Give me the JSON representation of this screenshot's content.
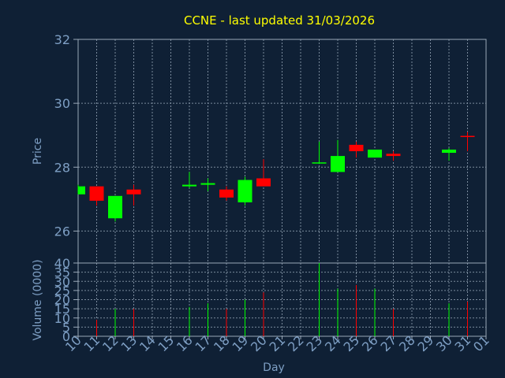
{
  "chart_data": {
    "type": "candlestick",
    "title": "CCNE - last updated 31/03/2026",
    "xlabel": "Day",
    "ylabel": "Price",
    "volume_label": "Volume (0000)",
    "x_ticks": [
      "10",
      "11",
      "12",
      "13",
      "14",
      "15",
      "16",
      "17",
      "18",
      "19",
      "20",
      "21",
      "22",
      "23",
      "24",
      "25",
      "26",
      "27",
      "28",
      "29",
      "30",
      "31",
      "01"
    ],
    "ylim": [
      25,
      32
    ],
    "y_ticks": [
      26,
      28,
      30,
      32
    ],
    "volume_ylim": [
      0,
      40
    ],
    "volume_ticks": [
      0,
      5,
      10,
      15,
      20,
      25,
      30,
      35,
      40
    ],
    "grid": true,
    "candles": [
      {
        "day": 10,
        "open": 27.15,
        "high": 27.45,
        "low": 27.15,
        "close": 27.4,
        "volume": 0
      },
      {
        "day": 11,
        "open": 27.4,
        "high": 27.4,
        "low": 26.8,
        "close": 26.95,
        "volume": 9
      },
      {
        "day": 12,
        "open": 26.4,
        "high": 27.1,
        "low": 26.3,
        "close": 27.1,
        "volume": 15
      },
      {
        "day": 13,
        "open": 27.3,
        "high": 27.45,
        "low": 26.8,
        "close": 27.15,
        "volume": 15
      },
      {
        "day": 16,
        "open": 27.4,
        "high": 27.85,
        "low": 27.35,
        "close": 27.45,
        "volume": 16
      },
      {
        "day": 17,
        "open": 27.45,
        "high": 27.65,
        "low": 27.25,
        "close": 27.5,
        "volume": 18
      },
      {
        "day": 18,
        "open": 27.3,
        "high": 27.4,
        "low": 26.95,
        "close": 27.05,
        "volume": 15
      },
      {
        "day": 19,
        "open": 26.9,
        "high": 27.7,
        "low": 26.8,
        "close": 27.6,
        "volume": 20
      },
      {
        "day": 20,
        "open": 27.65,
        "high": 28.25,
        "low": 27.4,
        "close": 27.4,
        "volume": 24
      },
      {
        "day": 23,
        "open": 28.15,
        "high": 28.8,
        "low": 28.1,
        "close": 28.15,
        "volume": 40
      },
      {
        "day": 24,
        "open": 27.85,
        "high": 28.85,
        "low": 27.85,
        "close": 28.35,
        "volume": 26
      },
      {
        "day": 25,
        "open": 28.7,
        "high": 28.8,
        "low": 28.3,
        "close": 28.5,
        "volume": 28
      },
      {
        "day": 26,
        "open": 28.3,
        "high": 28.55,
        "low": 28.3,
        "close": 28.55,
        "volume": 26
      },
      {
        "day": 27,
        "open": 28.42,
        "high": 28.5,
        "low": 28.2,
        "close": 28.35,
        "volume": 15
      },
      {
        "day": 30,
        "open": 28.45,
        "high": 28.6,
        "low": 28.2,
        "close": 28.55,
        "volume": 18
      },
      {
        "day": 31,
        "open": 28.98,
        "high": 29.1,
        "low": 28.5,
        "close": 28.95,
        "volume": 19
      }
    ]
  },
  "colors": {
    "background": "#0f2035",
    "grid": "#7a8a9c",
    "axis": "#9aa8b8",
    "tick_label": "#7e9fc4",
    "title": "#ffff00",
    "up": "#00ff00",
    "down": "#ff0000"
  }
}
